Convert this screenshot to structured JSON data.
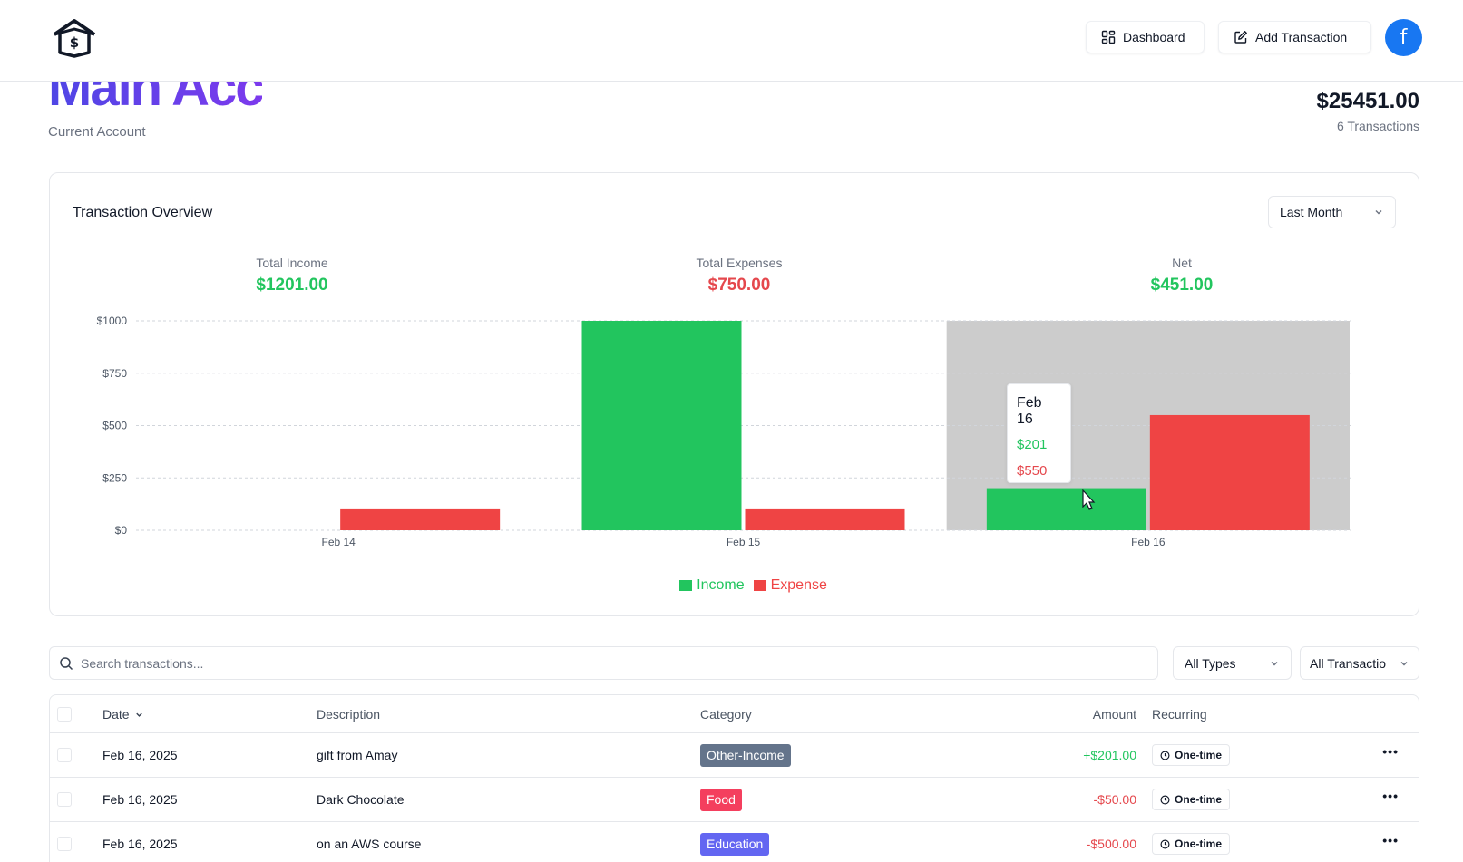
{
  "header": {
    "logo_icon": "house-dollar-icon",
    "dashboard_label": "Dashboard",
    "add_transaction_label": "Add Transaction",
    "avatar_letter": "f",
    "avatar_color": "#1877f2"
  },
  "account": {
    "name": "Main Acc",
    "type": "Current Account",
    "balance": "$25451.00",
    "transaction_count": "6 Transactions"
  },
  "overview": {
    "title": "Transaction Overview",
    "period": "Last Month",
    "total_income_label": "Total Income",
    "total_income": "$1201.00",
    "total_expenses_label": "Total Expenses",
    "total_expenses": "$750.00",
    "net_label": "Net",
    "net": "$451.00",
    "tooltip": {
      "date": "Feb 16",
      "income": "$201",
      "expense": "$550"
    }
  },
  "chart_data": {
    "type": "bar",
    "categories": [
      "Feb 14",
      "Feb 15",
      "Feb 16"
    ],
    "series": [
      {
        "name": "Income",
        "values": [
          0,
          1000,
          201
        ],
        "color": "#22c55e"
      },
      {
        "name": "Expense",
        "values": [
          100,
          100,
          550
        ],
        "color": "#ef4444"
      }
    ],
    "yticks": [
      "$0",
      "$250",
      "$500",
      "$750",
      "$1000"
    ],
    "ytick_values": [
      0,
      250,
      500,
      750,
      1000
    ],
    "ylim": [
      0,
      1000
    ],
    "grid": true,
    "legend": "bottom-center",
    "highlighted_category": "Feb 16"
  },
  "filters": {
    "search_placeholder": "Search transactions...",
    "type_filter": "All Types",
    "recurring_filter": "All Transactio"
  },
  "table": {
    "headers": {
      "date": "Date",
      "description": "Description",
      "category": "Category",
      "amount": "Amount",
      "recurring": "Recurring"
    },
    "rows": [
      {
        "date": "Feb 16, 2025",
        "description": "gift from Amay",
        "category": "Other-Income",
        "category_color": "#64748b",
        "amount": "+$201.00",
        "recurring": "One-time"
      },
      {
        "date": "Feb 16, 2025",
        "description": "Dark Chocolate",
        "category": "Food",
        "category_color": "#f43f5e",
        "amount": "-$50.00",
        "recurring": "One-time"
      },
      {
        "date": "Feb 16, 2025",
        "description": "on an AWS course",
        "category": "Education",
        "category_color": "#6366f1",
        "amount": "-$500.00",
        "recurring": "One-time"
      }
    ]
  }
}
